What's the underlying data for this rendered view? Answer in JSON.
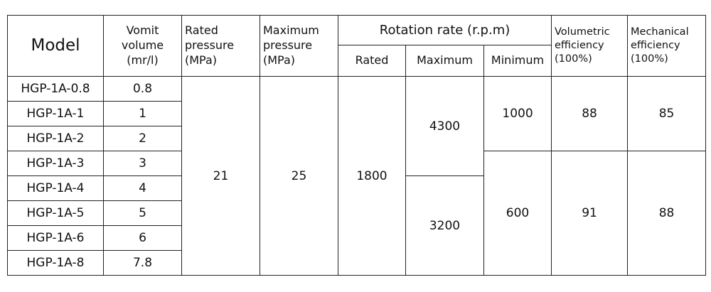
{
  "table": {
    "header": {
      "model": "Model",
      "volume": "Vomit volume (mr/l)",
      "rated_pressure": "Rated pressure (MPa)",
      "max_pressure": "Maximum pressure (MPa)",
      "rotation_rate": "Rotation rate (r.p.m)",
      "rated": "Rated",
      "maximum": "Maximum",
      "minimum": "Minimum",
      "volumetric_efficiency": "Volumetric efficiency (100%)",
      "mechanical_efficiency": "Mechanical efficiency (100%)"
    },
    "rows": [
      [
        "HGP-1A-0.8",
        0.8
      ],
      [
        "HGP-1A-1",
        1
      ],
      [
        "HGP-1A-2",
        2
      ],
      [
        "HGP-1A-3",
        3
      ],
      [
        "HGP-1A-4",
        4
      ],
      [
        "HGP-1A-5",
        5
      ],
      [
        "HGP-1A-6",
        6
      ],
      [
        "HGP-1A-8",
        7.8
      ]
    ],
    "rated_pressure": 21,
    "max_pressure": 25,
    "rated_speed": 1800,
    "max_speed": [
      4300,
      3200
    ],
    "min_speed": [
      1000,
      600
    ],
    "volumetric_efficiency": [
      88,
      91
    ],
    "mechanical_efficiency": [
      85,
      88
    ]
  }
}
